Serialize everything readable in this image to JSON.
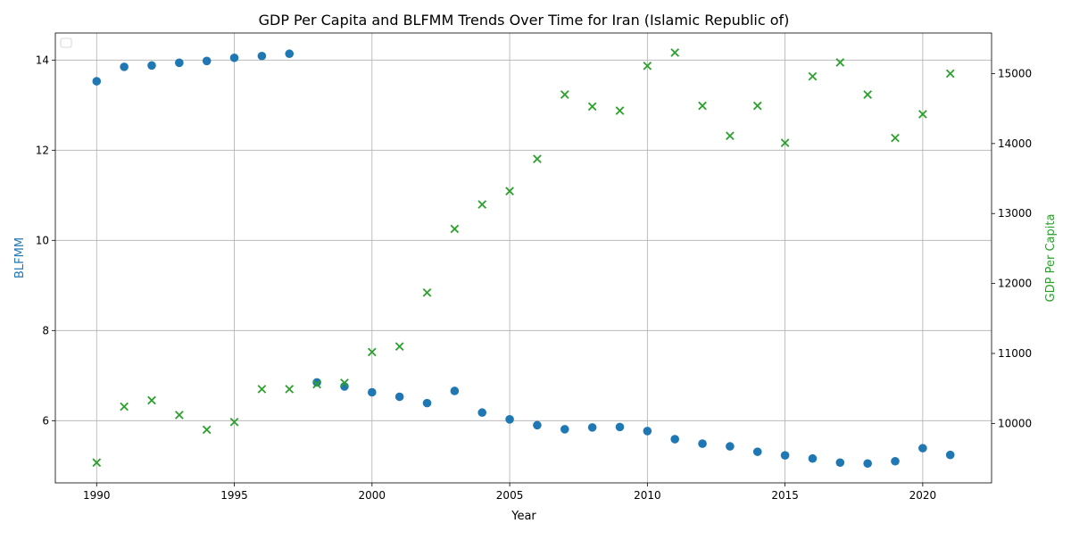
{
  "chart_data": {
    "type": "scatter",
    "title": "GDP Per Capita and BLFMM Trends Over Time for Iran (Islamic Republic of)",
    "xlabel": "Year",
    "ylabel_left": "BLFMM",
    "ylabel_right": "GDP Per Capita",
    "xlim": [
      1988.5,
      2022.5
    ],
    "ylim_left": [
      4.62,
      14.6
    ],
    "ylim_right": [
      9150,
      15580
    ],
    "xticks": [
      1990,
      1995,
      2000,
      2005,
      2010,
      2015,
      2020
    ],
    "yticks_left": [
      6,
      8,
      10,
      12,
      14
    ],
    "yticks_right": [
      10000,
      11000,
      12000,
      13000,
      14000,
      15000
    ],
    "grid": true,
    "legend": "top-left (empty)",
    "colors": {
      "blfmm": "#1f77b4",
      "gdp": "#2ca02c"
    },
    "series": [
      {
        "key": "blfmm",
        "axis": "left",
        "marker": "circle",
        "x": [
          1990,
          1991,
          1992,
          1993,
          1994,
          1995,
          1996,
          1997,
          1998,
          1999,
          2000,
          2001,
          2002,
          2003,
          2004,
          2005,
          2006,
          2007,
          2008,
          2009,
          2010,
          2011,
          2012,
          2013,
          2014,
          2015,
          2016,
          2017,
          2018,
          2019,
          2020,
          2021
        ],
        "values": [
          13.53,
          13.85,
          13.88,
          13.94,
          13.98,
          14.05,
          14.09,
          14.14,
          6.85,
          6.76,
          6.63,
          6.53,
          6.39,
          6.66,
          6.18,
          6.03,
          5.9,
          5.81,
          5.85,
          5.86,
          5.77,
          5.59,
          5.49,
          5.43,
          5.31,
          5.23,
          5.16,
          5.07,
          5.05,
          5.1,
          5.39,
          5.24
        ]
      },
      {
        "key": "gdp",
        "axis": "right",
        "marker": "x",
        "x": [
          1990,
          1991,
          1992,
          1993,
          1994,
          1995,
          1996,
          1997,
          1998,
          1999,
          2000,
          2001,
          2002,
          2003,
          2004,
          2005,
          2006,
          2007,
          2008,
          2009,
          2010,
          2011,
          2012,
          2013,
          2014,
          2015,
          2016,
          2017,
          2018,
          2019,
          2020,
          2021
        ],
        "values": [
          9440,
          10240,
          10330,
          10120,
          9910,
          10020,
          10490,
          10490,
          10560,
          10580,
          11020,
          11100,
          11870,
          12780,
          13130,
          13320,
          13780,
          14700,
          14530,
          14470,
          15110,
          15300,
          14540,
          14110,
          14540,
          14010,
          14960,
          15160,
          14700,
          14080,
          14420,
          15000
        ]
      }
    ]
  }
}
